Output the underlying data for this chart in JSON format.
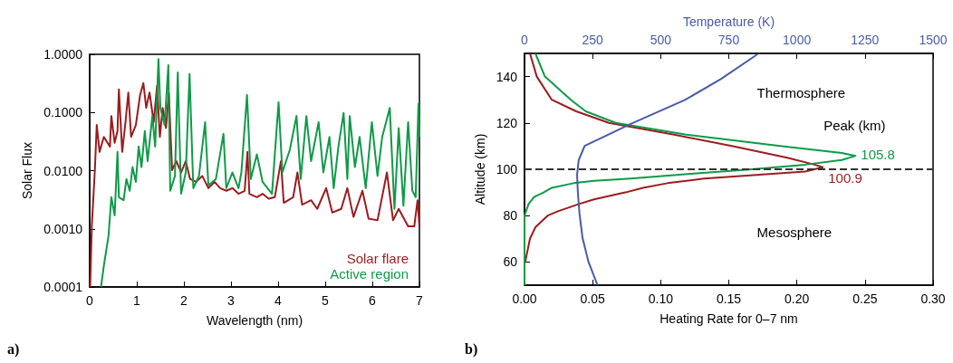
{
  "chart_data": [
    {
      "type": "line",
      "xlabel": "Wavelength (nm)",
      "ylabel": "Solar Flux",
      "log": "y",
      "legend": "bottom right",
      "grid": false,
      "xlim": [
        0,
        7
      ],
      "xticks": [
        0,
        1,
        2,
        3,
        4,
        5,
        6,
        7
      ],
      "ylim": [
        0.0001,
        1
      ],
      "yticks": [
        {
          "value": 1,
          "label": "1.0000"
        },
        {
          "value": 0.1,
          "label": "0.1000"
        },
        {
          "value": 0.01,
          "label": "0.0100"
        },
        {
          "value": 0.001,
          "label": "0.0010"
        },
        {
          "value": 0.0001,
          "label": "0.0001"
        }
      ],
      "annotations": [
        "a)"
      ],
      "series": [
        {
          "name": "Solar flare",
          "color": "#9b1c1f",
          "x": [
            0.01,
            0.045,
            0.11,
            0.15,
            0.21,
            0.3,
            0.43,
            0.46,
            0.53,
            0.59,
            0.62,
            0.69,
            0.76,
            0.82,
            0.88,
            0.98,
            1.07,
            1.14,
            1.2,
            1.27,
            1.36,
            1.43,
            1.49,
            1.55,
            1.62,
            1.68,
            1.75,
            1.84,
            1.94,
            2.04,
            2.13,
            2.26,
            2.39,
            2.52,
            2.65,
            2.77,
            2.9,
            3.03,
            3.16,
            3.29,
            3.35,
            3.39,
            3.55,
            3.67,
            3.8,
            3.93,
            4.06,
            4.12,
            4.32,
            4.41,
            4.51,
            4.7,
            4.83,
            5.02,
            5.15,
            5.34,
            5.47,
            5.6,
            5.79,
            5.92,
            6.11,
            6.31,
            6.44,
            6.56,
            6.76,
            6.89,
            6.96,
            7.0
          ],
          "values": [
            0.0001,
            0.0011,
            0.0102,
            0.061,
            0.021,
            0.038,
            0.026,
            0.087,
            0.03,
            0.048,
            0.25,
            0.021,
            0.068,
            0.22,
            0.038,
            0.061,
            0.2,
            0.32,
            0.12,
            0.22,
            0.068,
            0.29,
            0.038,
            0.12,
            0.054,
            0.22,
            0.0102,
            0.0146,
            0.0093,
            0.0146,
            0.0072,
            0.0064,
            0.0081,
            0.005,
            0.0064,
            0.005,
            0.0045,
            0.005,
            0.004,
            0.0045,
            0.021,
            0.004,
            0.0035,
            0.004,
            0.0033,
            0.0035,
            0.0146,
            0.0028,
            0.0035,
            0.0093,
            0.0026,
            0.0031,
            0.0022,
            0.005,
            0.0019,
            0.0022,
            0.005,
            0.0016,
            0.0045,
            0.0015,
            0.0014,
            0.0093,
            0.0014,
            0.0022,
            0.0011,
            0.0011,
            0.0031,
            0.0011
          ]
        },
        {
          "name": "Active region",
          "color": "#0f9a48",
          "x": [
            0.24,
            0.3,
            0.4,
            0.46,
            0.53,
            0.59,
            0.62,
            0.72,
            0.78,
            0.85,
            0.91,
            0.98,
            1.04,
            1.1,
            1.17,
            1.23,
            1.33,
            1.39,
            1.46,
            1.5,
            1.59,
            1.67,
            1.71,
            1.81,
            1.87,
            1.94,
            2.04,
            2.12,
            2.2,
            2.32,
            2.45,
            2.52,
            2.68,
            2.84,
            2.9,
            3.03,
            3.16,
            3.22,
            3.34,
            3.42,
            3.55,
            3.67,
            3.87,
            4.01,
            4.09,
            4.25,
            4.39,
            4.48,
            4.6,
            4.7,
            4.86,
            4.96,
            5.09,
            5.18,
            5.28,
            5.39,
            5.47,
            5.52,
            5.63,
            5.73,
            5.86,
            5.99,
            6.11,
            6.21,
            6.37,
            6.47,
            6.56,
            6.66,
            6.76,
            6.85,
            6.92,
            6.98,
            7.0
          ],
          "values": [
            0.0001,
            0.00023,
            0.00076,
            0.0035,
            0.0017,
            0.021,
            0.0035,
            0.0031,
            0.0072,
            0.0045,
            0.0115,
            0.0064,
            0.026,
            0.0115,
            0.048,
            0.0146,
            0.087,
            0.026,
            0.83,
            0.12,
            0.061,
            0.65,
            0.0045,
            0.0081,
            0.49,
            0.004,
            0.0093,
            0.46,
            0.005,
            0.0081,
            0.068,
            0.0056,
            0.0072,
            0.043,
            0.005,
            0.0093,
            0.005,
            0.0093,
            0.2,
            0.0072,
            0.019,
            0.0064,
            0.004,
            0.15,
            0.0093,
            0.023,
            0.087,
            0.0072,
            0.087,
            0.0146,
            0.068,
            0.0093,
            0.038,
            0.005,
            0.026,
            0.098,
            0.0072,
            0.087,
            0.0115,
            0.038,
            0.005,
            0.068,
            0.0081,
            0.038,
            0.12,
            0.0022,
            0.054,
            0.0025,
            0.068,
            0.0045,
            0.0035,
            0.14,
            0.038
          ]
        }
      ]
    },
    {
      "type": "line",
      "xlabel": "Heating Rate for 0–7 nm",
      "ylabel": "Altitude (km)",
      "x2label": "Temperature (K)",
      "legend": false,
      "grid": false,
      "xlim": [
        0,
        0.3
      ],
      "xticks": [
        {
          "value": 0,
          "label": "0.00"
        },
        {
          "value": 0.05,
          "label": "0.05"
        },
        {
          "value": 0.1,
          "label": "0.10"
        },
        {
          "value": 0.15,
          "label": "0.15"
        },
        {
          "value": 0.2,
          "label": "0.20"
        },
        {
          "value": 0.25,
          "label": "0.25"
        },
        {
          "value": 0.3,
          "label": "0.30"
        }
      ],
      "x2lim": [
        0,
        1500
      ],
      "x2ticks": [
        0,
        250,
        500,
        750,
        1000,
        1250,
        1500
      ],
      "ylim": [
        50,
        150
      ],
      "yticks": [
        60,
        80,
        100,
        120,
        140
      ],
      "ref_lines": [
        {
          "axis": "y",
          "value": 100,
          "line_style": "dashed",
          "color": "#333333"
        }
      ],
      "annotations": [
        "b)",
        "Thermosphere",
        "Peak (km)",
        "Mesosphere",
        {
          "text": "105.8",
          "x": 0.243,
          "y": 105.8
        },
        {
          "text": "100.9",
          "x": 0.219,
          "y": 100.9
        }
      ],
      "series": [
        {
          "color": "#9b1c1f",
          "x": [
            0.004,
            0.009,
            0.02,
            0.038,
            0.062,
            0.109,
            0.153,
            0.193,
            0.213,
            0.219,
            0.206,
            0.182,
            0.132,
            0.105,
            0.087,
            0.074,
            0.051,
            0.04,
            0.025,
            0.017,
            0.008,
            0.004,
            0.0005
          ],
          "values": [
            150,
            140,
            130,
            125,
            120,
            115,
            110,
            105,
            102,
            100.9,
            99,
            98,
            96,
            94,
            92,
            90,
            87,
            85,
            82,
            80,
            75,
            70,
            60
          ]
        },
        {
          "color": "#0f9a48",
          "x": [
            0.008,
            0.015,
            0.034,
            0.045,
            0.067,
            0.118,
            0.189,
            0.233,
            0.243,
            0.233,
            0.206,
            0.167,
            0.122,
            0.078,
            0.051,
            0.036,
            0.02,
            0.014,
            0.007,
            0.003,
            0,
            0
          ],
          "values": [
            150,
            140,
            130,
            125,
            120,
            115,
            110,
            107,
            105.8,
            104,
            102,
            100,
            98,
            96,
            95,
            94,
            92,
            90,
            88,
            85,
            80,
            50
          ]
        },
        {
          "color": "#4a5aa8",
          "axis": "x2",
          "x": [
            268,
            235,
            213,
            202,
            196,
            193,
            199,
            221,
            390,
            589,
            722,
            855
          ],
          "values": [
            50,
            60,
            70.4,
            80.7,
            89.8,
            97.6,
            104,
            110.1,
            119.6,
            129.9,
            139,
            149.6
          ]
        }
      ]
    }
  ]
}
